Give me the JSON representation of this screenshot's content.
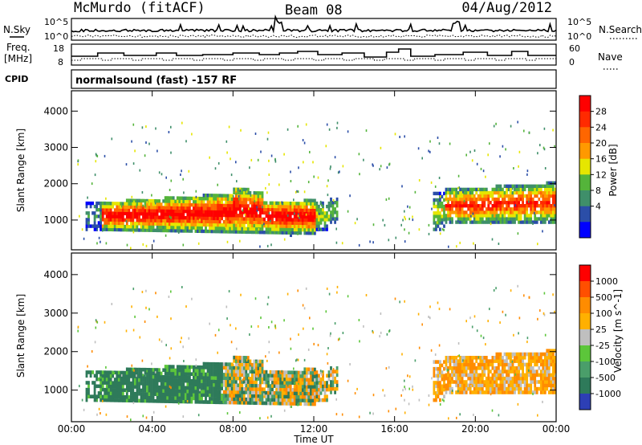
{
  "header": {
    "radar": "McMurdo (fitACF)",
    "beam": "Beam 08",
    "date": "04/Aug/2012"
  },
  "aux": {
    "nsky_label": "N.Sky",
    "nsearch_label": "N.Search",
    "noise_ticks": [
      "10^5",
      "10^0"
    ],
    "freq_label_1": "Freq.",
    "freq_label_2": "[MHz]",
    "freq_ticks": [
      "18",
      "8"
    ],
    "nave_label": "Nave",
    "nave_ticks": [
      "60",
      "0"
    ],
    "cpid_label": "CPID",
    "mode_text": "normalsound (fast) -157 RF"
  },
  "colors": {
    "power": [
      "#0000ff",
      "#2b4ea8",
      "#3f8f6a",
      "#54b43a",
      "#e6e600",
      "#ff9900",
      "#ff6600",
      "#ff2a00",
      "#ff0000"
    ],
    "velocity": [
      "#2d3fb5",
      "#2e7a5a",
      "#4a9e6a",
      "#5cc63a",
      "#bfbfbf",
      "#ffb000",
      "#ff8c00",
      "#ff4f00",
      "#ff0000"
    ]
  },
  "chart_data": [
    {
      "type": "heatmap",
      "title": "Power",
      "ylabel": "Slant Range [km]",
      "ylim": [
        180,
        4560
      ],
      "yticks": [
        1000,
        2000,
        3000,
        4000
      ],
      "xlabel": "",
      "colorbar_label": "Power [dB]",
      "colorbar_ticks": [
        "4",
        "8",
        "12",
        "16",
        "20",
        "24",
        "28"
      ],
      "colorbar_range": [
        0,
        32
      ]
    },
    {
      "type": "heatmap",
      "title": "Velocity",
      "ylabel": "Slant Range [km]",
      "ylim": [
        180,
        4560
      ],
      "yticks": [
        1000,
        2000,
        3000,
        4000
      ],
      "xlabel": "Time UT",
      "xticks": [
        "00:00",
        "04:00",
        "08:00",
        "12:00",
        "16:00",
        "20:00",
        "00:00"
      ],
      "xlim_hours": [
        0,
        24
      ],
      "colorbar_label": "Velocity [m s^-1]",
      "colorbar_ticks": [
        "1000",
        "500",
        "100",
        "25",
        "-25",
        "-100",
        "-500",
        "-1000"
      ]
    }
  ]
}
